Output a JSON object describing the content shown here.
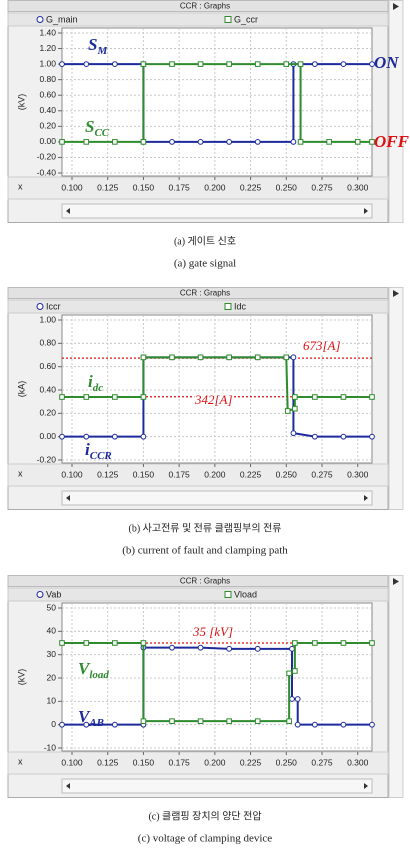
{
  "chart_data": [
    {
      "type": "line",
      "title": "CCR : Graphs",
      "ylabel": "(kV)",
      "xlabel": "x",
      "caption_ko": "(a) 게이트 신호",
      "caption_en": "(a) gate signal",
      "xlim": [
        0.093,
        0.31
      ],
      "xticks": [
        {
          "value": 0.1,
          "label": "0.100"
        },
        0.125,
        {
          "value": 0.15,
          "label": "0.150"
        },
        0.175,
        {
          "value": 0.2,
          "label": "0.200"
        },
        0.225,
        {
          "value": 0.25,
          "label": "0.250"
        },
        0.275,
        {
          "value": 0.3,
          "label": "0.300"
        }
      ],
      "ylim": [
        -0.4,
        1.4
      ],
      "yticks": [
        {
          "value": -0.4,
          "label": "-0.40"
        },
        {
          "value": -0.2,
          "label": "-0.20"
        },
        {
          "value": 0,
          "label": "0.00"
        },
        {
          "value": 0.2,
          "label": "0.20"
        },
        {
          "value": 0.4,
          "label": "0.40"
        },
        {
          "value": 0.6,
          "label": "0.60"
        },
        {
          "value": 0.8,
          "label": "0.80"
        },
        {
          "value": 1,
          "label": "1.00"
        },
        {
          "value": 1.2,
          "label": "1.20"
        },
        {
          "value": 1.4,
          "label": "1.40"
        }
      ],
      "grid": true,
      "series": [
        {
          "name": "G_main",
          "color": "#1c2a9c",
          "marker": "circle",
          "x": [
            0.093,
            0.11,
            0.13,
            0.15,
            0.15,
            0.17,
            0.19,
            0.21,
            0.23,
            0.255,
            0.255,
            0.27,
            0.29,
            0.31
          ],
          "values": [
            1,
            1,
            1,
            1,
            0,
            0,
            0,
            0,
            0,
            0,
            1,
            1,
            1,
            1
          ]
        },
        {
          "name": "G_ccr",
          "color": "#2e8b2e",
          "marker": "square",
          "x": [
            0.093,
            0.11,
            0.13,
            0.15,
            0.15,
            0.17,
            0.19,
            0.21,
            0.23,
            0.25,
            0.26,
            0.26,
            0.28,
            0.3,
            0.31
          ],
          "values": [
            0,
            0,
            0,
            0,
            1,
            1,
            1,
            1,
            1,
            1,
            1,
            0,
            0,
            0,
            0
          ]
        }
      ],
      "reference_lines": [],
      "annotations": [
        {
          "text": "S",
          "sub": "M",
          "color": "#1c2a9c"
        },
        {
          "text": "S",
          "sub": "CC",
          "color": "#2e8b2e"
        },
        {
          "text": "ON",
          "color": "#1c2a9c"
        },
        {
          "text": "OFF",
          "color": "#e01010"
        }
      ]
    },
    {
      "type": "line",
      "title": "CCR : Graphs",
      "ylabel": "(kA)",
      "xlabel": "x",
      "caption_ko": "(b) 사고전류 및 전류 클램핑부의 전류",
      "caption_en": "(b) current of fault and clamping path",
      "xlim": [
        0.093,
        0.31
      ],
      "xticks": [
        {
          "value": 0.1,
          "label": "0.100"
        },
        0.125,
        {
          "value": 0.15,
          "label": "0.150"
        },
        0.175,
        {
          "value": 0.2,
          "label": "0.200"
        },
        0.225,
        {
          "value": 0.25,
          "label": "0.250"
        },
        0.275,
        {
          "value": 0.3,
          "label": "0.300"
        }
      ],
      "ylim": [
        -0.2,
        1
      ],
      "yticks": [
        {
          "value": -0.2,
          "label": "-0.20"
        },
        {
          "value": 0,
          "label": "0.00"
        },
        {
          "value": 0.2,
          "label": "0.20"
        },
        {
          "value": 0.4,
          "label": "0.40"
        },
        {
          "value": 0.6,
          "label": "0.60"
        },
        {
          "value": 0.8,
          "label": "0.80"
        },
        {
          "value": 1,
          "label": "1.00"
        }
      ],
      "grid": true,
      "series": [
        {
          "name": "Iccr",
          "color": "#1c2a9c",
          "marker": "circle",
          "x": [
            0.093,
            0.11,
            0.13,
            0.15,
            0.15,
            0.17,
            0.19,
            0.21,
            0.23,
            0.255,
            0.255,
            0.27,
            0.29,
            0.31
          ],
          "values": [
            0,
            0,
            0,
            0,
            0.68,
            0.68,
            0.68,
            0.68,
            0.68,
            0.68,
            0.03,
            0,
            0,
            0
          ]
        },
        {
          "name": "Idc",
          "color": "#2e8b2e",
          "marker": "square",
          "x": [
            0.093,
            0.11,
            0.13,
            0.15,
            0.15,
            0.17,
            0.19,
            0.21,
            0.23,
            0.25,
            0.251,
            0.256,
            0.256,
            0.27,
            0.29,
            0.31
          ],
          "values": [
            0.34,
            0.34,
            0.34,
            0.34,
            0.68,
            0.68,
            0.68,
            0.68,
            0.68,
            0.68,
            0.22,
            0.24,
            0.34,
            0.34,
            0.34,
            0.34
          ]
        }
      ],
      "reference_lines": [
        {
          "value": 0.673,
          "label": "673[A]",
          "color": "#e01010"
        },
        {
          "value": 0.342,
          "label": "342[A]",
          "color": "#e01010"
        }
      ],
      "annotations": [
        {
          "text": "i",
          "sub": "dc",
          "color": "#2e8b2e"
        },
        {
          "text": "i",
          "sub": "CCR",
          "color": "#1c2a9c"
        }
      ]
    },
    {
      "type": "line",
      "title": "CCR : Graphs",
      "ylabel": "(kV)",
      "xlabel": "x",
      "caption_ko": "(c) 클램핑 장치의 양단 전압",
      "caption_en": "(c) voltage of clamping device",
      "xlim": [
        0.093,
        0.31
      ],
      "xticks": [
        {
          "value": 0.1,
          "label": "0.100"
        },
        0.125,
        {
          "value": 0.15,
          "label": "0.150"
        },
        0.175,
        {
          "value": 0.2,
          "label": "0.200"
        },
        0.225,
        {
          "value": 0.25,
          "label": "0.250"
        },
        0.275,
        {
          "value": 0.3,
          "label": "0.300"
        }
      ],
      "ylim": [
        -10,
        50
      ],
      "yticks": [
        -10,
        0,
        10,
        20,
        30,
        40,
        50
      ],
      "grid": true,
      "series": [
        {
          "name": "Vab",
          "color": "#1c2a9c",
          "marker": "circle",
          "x": [
            0.093,
            0.11,
            0.13,
            0.15,
            0.15,
            0.17,
            0.19,
            0.21,
            0.23,
            0.254,
            0.254,
            0.258,
            0.258,
            0.27,
            0.29,
            0.31
          ],
          "values": [
            0,
            0,
            0,
            0,
            33,
            33,
            33,
            32.5,
            32.5,
            32.5,
            11,
            11,
            0,
            0,
            0,
            0
          ]
        },
        {
          "name": "Vload",
          "color": "#2e8b2e",
          "marker": "square",
          "x": [
            0.093,
            0.11,
            0.13,
            0.15,
            0.15,
            0.17,
            0.19,
            0.21,
            0.23,
            0.252,
            0.252,
            0.256,
            0.256,
            0.27,
            0.29,
            0.31
          ],
          "values": [
            35,
            35,
            35,
            35,
            1.5,
            1.5,
            1.5,
            1.5,
            1.5,
            1.5,
            22,
            23,
            35,
            35,
            35,
            35
          ]
        }
      ],
      "reference_lines": [
        {
          "value": 35,
          "label": "35 [kV]",
          "color": "#e01010"
        }
      ],
      "annotations": [
        {
          "text": "V",
          "sub": "load",
          "color": "#2e8b2e"
        },
        {
          "text": "V",
          "sub": "AB",
          "color": "#1c2a9c"
        }
      ]
    }
  ]
}
